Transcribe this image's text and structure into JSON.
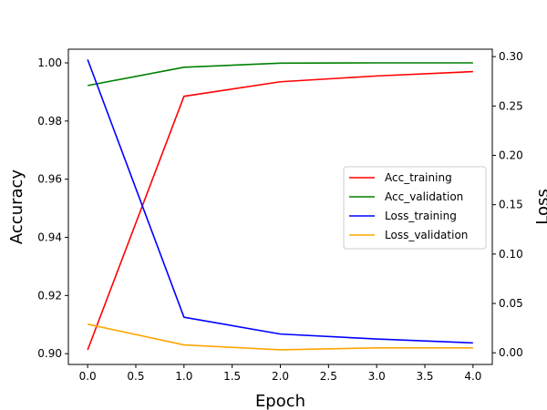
{
  "chart_data": {
    "type": "line",
    "title": "",
    "xlabel": "Epoch",
    "ylabel_left": "Accuracy",
    "ylabel_right": "Loss",
    "x": [
      0,
      1,
      2,
      3,
      4
    ],
    "xlim": [
      -0.2,
      4.2
    ],
    "xticks": [
      0,
      0.5,
      1,
      1.5,
      2,
      2.5,
      3,
      3.5,
      4
    ],
    "xtick_labels": [
      "0.0",
      "0.5",
      "1.0",
      "1.5",
      "2.0",
      "2.5",
      "3.0",
      "3.5",
      "4.0"
    ],
    "ylim_left": [
      0.8963,
      1.0047
    ],
    "yticks_left": [
      0.9,
      0.92,
      0.94,
      0.96,
      0.98,
      1.0
    ],
    "ytick_labels_left": [
      "0.90",
      "0.92",
      "0.94",
      "0.96",
      "0.98",
      "1.00"
    ],
    "ylim_right": [
      -0.0118,
      0.3075
    ],
    "yticks_right": [
      0.0,
      0.05,
      0.1,
      0.15,
      0.2,
      0.25,
      0.3
    ],
    "ytick_labels_right": [
      "0.00",
      "0.05",
      "0.10",
      "0.15",
      "0.20",
      "0.25",
      "0.30"
    ],
    "grid": false,
    "legend_position": "center-right",
    "series": [
      {
        "name": "Acc_training",
        "axis": "left",
        "color": "#ff0000",
        "values": [
          0.9013,
          0.9885,
          0.9935,
          0.9955,
          0.997
        ]
      },
      {
        "name": "Acc_validation",
        "axis": "left",
        "color": "#008000",
        "values": [
          0.9922,
          0.9985,
          0.9999,
          1.0,
          1.0
        ]
      },
      {
        "name": "Loss_training",
        "axis": "right",
        "color": "#0000ff",
        "values": [
          0.297,
          0.036,
          0.019,
          0.014,
          0.01
        ]
      },
      {
        "name": "Loss_validation",
        "axis": "right",
        "color": "#ffa500",
        "values": [
          0.029,
          0.008,
          0.003,
          0.005,
          0.005
        ]
      }
    ]
  }
}
